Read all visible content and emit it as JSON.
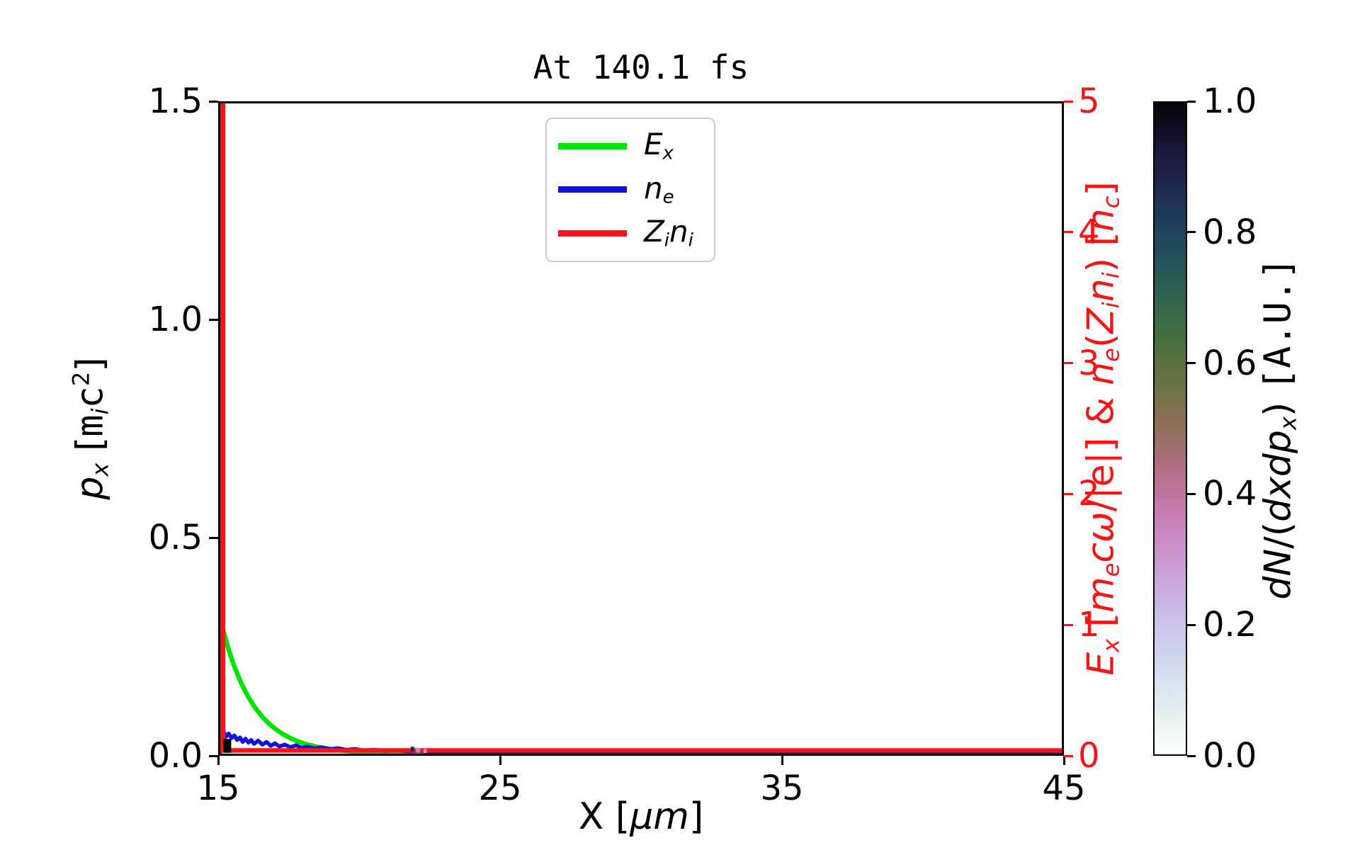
{
  "title": "At 140.1 fs",
  "colors": {
    "ex_green": "#00e400",
    "ne_blue": "#1212dd",
    "zini_red": "#f81414",
    "right_axis_red": "#f81414",
    "legend_border": "#cccccc",
    "spine_black": "#000000"
  },
  "axes": {
    "x": {
      "label_segments": [
        [
          "n",
          "X ["
        ],
        [
          "i",
          "μm"
        ],
        [
          "n",
          "]"
        ]
      ],
      "ticks": [
        {
          "label": "15",
          "v": 15
        },
        {
          "label": "25",
          "v": 25
        },
        {
          "label": "35",
          "v": 35
        },
        {
          "label": "45",
          "v": 45
        }
      ],
      "range": [
        15,
        45
      ]
    },
    "y_left": {
      "label_segments": [
        [
          "i",
          "p"
        ],
        [
          "subi",
          "x"
        ],
        [
          "n",
          " ["
        ],
        [
          "m",
          "m"
        ],
        [
          "subi",
          "i"
        ],
        [
          "m",
          "c"
        ],
        [
          "sup",
          "2"
        ],
        [
          "n",
          "]"
        ]
      ],
      "ticks": [
        {
          "label": "0.0",
          "v": 0.0
        },
        {
          "label": "0.5",
          "v": 0.5
        },
        {
          "label": "1.0",
          "v": 1.0
        },
        {
          "label": "1.5",
          "v": 1.5
        }
      ],
      "range": [
        0,
        1.5
      ]
    },
    "y_right": {
      "label_segments": [
        [
          "i",
          "E"
        ],
        [
          "subi",
          "x"
        ],
        [
          "n",
          "  ["
        ],
        [
          "i",
          "m"
        ],
        [
          "subi",
          "e"
        ],
        [
          "i",
          "cω"
        ],
        [
          "n",
          "/|e|]  &  "
        ],
        [
          "i",
          "n"
        ],
        [
          "subi",
          "e"
        ],
        [
          "n",
          "("
        ],
        [
          "i",
          "Z"
        ],
        [
          "subi",
          "i"
        ],
        [
          "i",
          "n"
        ],
        [
          "subi",
          "i"
        ],
        [
          "n",
          ")  ["
        ],
        [
          "i",
          "n"
        ],
        [
          "subi",
          "c"
        ],
        [
          "n",
          "]"
        ]
      ],
      "ticks": [
        {
          "label": "0",
          "v": 0
        },
        {
          "label": "1",
          "v": 1
        },
        {
          "label": "2",
          "v": 2
        },
        {
          "label": "3",
          "v": 3
        },
        {
          "label": "4",
          "v": 4
        },
        {
          "label": "5",
          "v": 5
        }
      ],
      "range": [
        0,
        5
      ]
    }
  },
  "legend": {
    "entries": [
      {
        "name": "Ex",
        "color": "#00e400",
        "segments": [
          [
            "i",
            "E"
          ],
          [
            "subi",
            "x"
          ]
        ]
      },
      {
        "name": "ne",
        "color": "#1212dd",
        "segments": [
          [
            "i",
            "n"
          ],
          [
            "subi",
            "e"
          ]
        ]
      },
      {
        "name": "Zini",
        "color": "#f81414",
        "segments": [
          [
            "i",
            "Z"
          ],
          [
            "subi",
            "i"
          ],
          [
            "i",
            "n"
          ],
          [
            "subi",
            "i"
          ]
        ]
      }
    ]
  },
  "colorbar": {
    "label_segments": [
      [
        "i",
        "dN"
      ],
      [
        "n",
        "/("
      ],
      [
        "i",
        "dxdp"
      ],
      [
        "subi",
        "x"
      ],
      [
        "n",
        ") "
      ],
      [
        "m",
        "[A.U.]"
      ]
    ],
    "ticks": [
      {
        "label": "0.0",
        "v": 0.0
      },
      {
        "label": "0.2",
        "v": 0.2
      },
      {
        "label": "0.4",
        "v": 0.4
      },
      {
        "label": "0.6",
        "v": 0.6
      },
      {
        "label": "0.8",
        "v": 0.8
      },
      {
        "label": "1.0",
        "v": 1.0
      }
    ],
    "range": [
      0,
      1
    ],
    "colormap_name": "cubehelix_r",
    "gradient_stops": [
      [
        0.0,
        "#ffffff"
      ],
      [
        0.05,
        "#eaf4ef"
      ],
      [
        0.1,
        "#d9e6ee"
      ],
      [
        0.15,
        "#cfd6ed"
      ],
      [
        0.2,
        "#cbc2e9"
      ],
      [
        0.25,
        "#cbaee1"
      ],
      [
        0.3,
        "#cc98d2"
      ],
      [
        0.35,
        "#c983bc"
      ],
      [
        0.4,
        "#bf739f"
      ],
      [
        0.45,
        "#ab6e7e"
      ],
      [
        0.5,
        "#916f5e"
      ],
      [
        0.55,
        "#757247"
      ],
      [
        0.6,
        "#59723d"
      ],
      [
        0.65,
        "#416d41"
      ],
      [
        0.7,
        "#2f634e"
      ],
      [
        0.75,
        "#245559"
      ],
      [
        0.8,
        "#1e445d"
      ],
      [
        0.85,
        "#1e3055"
      ],
      [
        0.9,
        "#1d1f43"
      ],
      [
        0.95,
        "#151029"
      ],
      [
        1.0,
        "#060409"
      ]
    ]
  },
  "chart_data": {
    "type": "line",
    "title": "At 140.1 fs",
    "xlabel": "X [um]",
    "ylabel_left": "p_x [m_i c^2]",
    "ylabel_right": "E_x [m_e c w/|e|] & n_e(Z_i n_i) [n_c]",
    "colorbar_label": "dN/(dxdp_x) [A.U.]",
    "x_range": [
      15,
      45
    ],
    "y_left_range": [
      0,
      1.5
    ],
    "y_right_range": [
      0,
      5
    ],
    "grid": false,
    "legend_position": "upper center",
    "series": [
      {
        "name": "E_x",
        "axis": "right",
        "color": "#00e400",
        "x": [
          15.0,
          15.05,
          15.1,
          15.3,
          15.5,
          15.75,
          16.0,
          16.25,
          16.5,
          16.75,
          17.0,
          17.25,
          17.5,
          17.75,
          18.0,
          18.5,
          19.0,
          19.5,
          20.0,
          20.5,
          21.0,
          21.5,
          22.0,
          23.0,
          24.0,
          25.0,
          30.0,
          35.0,
          40.0,
          45.0
        ],
        "y": [
          0.0,
          0.55,
          0.95,
          0.8,
          0.67,
          0.54,
          0.435,
          0.35,
          0.283,
          0.228,
          0.184,
          0.148,
          0.119,
          0.096,
          0.077,
          0.05,
          0.033,
          0.021,
          0.014,
          0.009,
          0.006,
          0.004,
          0.0025,
          0.001,
          0.0005,
          0.0,
          0.0,
          0.0,
          0.0,
          0.0
        ]
      },
      {
        "name": "n_e",
        "axis": "right",
        "color": "#1212dd",
        "x": [
          15.0,
          15.04,
          15.08,
          15.12,
          15.2,
          15.3,
          15.4,
          15.5,
          15.6,
          15.7,
          15.8,
          15.9,
          16.0,
          16.1,
          16.2,
          16.35,
          16.5,
          16.65,
          16.8,
          16.95,
          17.1,
          17.3,
          17.5,
          17.7,
          17.9,
          18.1,
          18.35,
          18.6,
          18.9,
          19.2,
          19.5,
          19.8,
          20.1,
          20.5,
          20.9,
          21.3,
          21.7,
          22.1,
          22.5,
          23.0,
          23.5,
          24.0,
          25.0,
          26.0,
          28.0,
          31.0,
          35.0,
          40.0,
          45.0
        ],
        "y": [
          0.0,
          0.42,
          0.3,
          0.17,
          0.13,
          0.155,
          0.12,
          0.14,
          0.105,
          0.125,
          0.09,
          0.115,
          0.085,
          0.105,
          0.075,
          0.1,
          0.07,
          0.09,
          0.06,
          0.08,
          0.055,
          0.07,
          0.05,
          0.065,
          0.045,
          0.055,
          0.04,
          0.05,
          0.035,
          0.042,
          0.03,
          0.036,
          0.025,
          0.03,
          0.02,
          0.025,
          0.016,
          0.02,
          0.012,
          0.01,
          0.008,
          0.007,
          0.005,
          0.004,
          0.003,
          0.002,
          0.002,
          0.002,
          0.002
        ]
      },
      {
        "name": "Z_i n_i",
        "axis": "right",
        "color": "#f81414",
        "x": [
          15.0,
          15.0,
          15.1,
          15.1,
          15.3,
          45.0
        ],
        "y": [
          0.0,
          5.0,
          5.0,
          0.03,
          0.025,
          0.025
        ]
      }
    ],
    "phase_space_points": [
      {
        "x": 15.25,
        "p_x": 0.018,
        "value": 1.0,
        "w": 0.28,
        "h": 0.032
      },
      {
        "x": 21.85,
        "p_x": 0.01,
        "value": 0.85,
        "w": 0.13,
        "h": 0.012
      },
      {
        "x": 22.05,
        "p_x": 0.008,
        "value": 0.35,
        "w": 0.15,
        "h": 0.011
      },
      {
        "x": 22.3,
        "p_x": 0.006,
        "value": 0.3,
        "w": 0.11,
        "h": 0.009
      }
    ]
  }
}
